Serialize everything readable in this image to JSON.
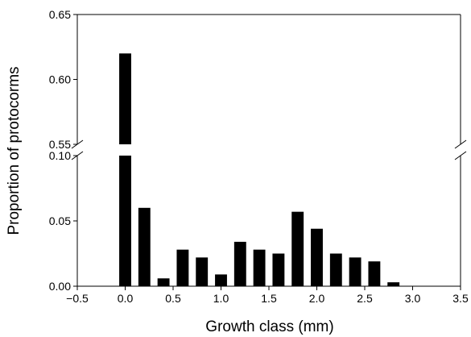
{
  "chart_data": {
    "type": "bar",
    "xlabel": "Growth class (mm)",
    "ylabel": "Proportion of protocorms",
    "axis_break": true,
    "y_segments": [
      {
        "range": [
          0.55,
          0.65
        ],
        "ticks": [
          "0.55",
          "0.60",
          "0.65"
        ]
      },
      {
        "range": [
          0.0,
          0.1
        ],
        "ticks": [
          "0.00",
          "0.05",
          "0.10"
        ]
      }
    ],
    "xlim": [
      -0.5,
      3.5
    ],
    "xticks": [
      "-0.5",
      "0.0",
      "0.5",
      "1.0",
      "1.5",
      "2.0",
      "2.5",
      "3.0",
      "3.5"
    ],
    "x": [
      0.0,
      0.2,
      0.4,
      0.6,
      0.8,
      1.0,
      1.2,
      1.4,
      1.6,
      1.8,
      2.0,
      2.2,
      2.4,
      2.6,
      2.8,
      3.0
    ],
    "values": [
      0.62,
      0.06,
      0.006,
      0.028,
      0.022,
      0.009,
      0.034,
      0.028,
      0.025,
      0.057,
      0.044,
      0.025,
      0.022,
      0.019,
      0.003,
      0.0
    ],
    "bar_color": "#000000"
  }
}
